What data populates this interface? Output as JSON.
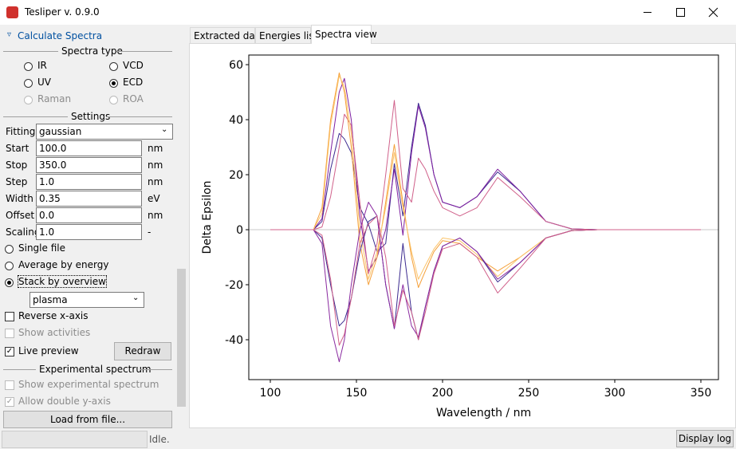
{
  "window": {
    "title": "Tesliper v. 0.9.0"
  },
  "panel": {
    "section": "Calculate Spectra",
    "spectra_type": {
      "header": "Spectra type",
      "options": [
        "IR",
        "VCD",
        "UV",
        "ECD",
        "Raman",
        "ROA"
      ]
    },
    "settings": {
      "header": "Settings",
      "fitting_label": "Fitting",
      "fitting": "gaussian",
      "rows": [
        {
          "label": "Start",
          "value": "100.0",
          "unit": "nm"
        },
        {
          "label": "Stop",
          "value": "350.0",
          "unit": "nm"
        },
        {
          "label": "Step",
          "value": "1.0",
          "unit": "nm"
        },
        {
          "label": "Width",
          "value": "0.35",
          "unit": "eV"
        },
        {
          "label": "Offset",
          "value": "0.0",
          "unit": "nm"
        },
        {
          "label": "Scaling",
          "value": "1.0",
          "unit": "-"
        }
      ]
    },
    "modes": [
      "Single file",
      "Average by energy",
      "Stack by overview"
    ],
    "colormap": "plasma",
    "reverse_x": "Reverse x-axis",
    "show_activities": "Show activities",
    "live_preview": "Live preview",
    "redraw": "Redraw",
    "experimental": {
      "header": "Experimental spectrum",
      "show": "Show experimental spectrum",
      "double_y": "Allow double y-axis",
      "load": "Load from file..."
    }
  },
  "tabs": [
    "Extracted data",
    "Energies list",
    "Spectra view"
  ],
  "status": {
    "text": "Idle.",
    "log_button": "Display log"
  },
  "chart_data": {
    "type": "line",
    "xlabel": "Wavelength / nm",
    "ylabel": "Delta Epsilon",
    "x": [
      100,
      125,
      130,
      135,
      140,
      143,
      147,
      152,
      157,
      162,
      167,
      172,
      177,
      182,
      186,
      190,
      195,
      200,
      210,
      220,
      232,
      245,
      260,
      275,
      290,
      350
    ],
    "series": [
      {
        "color": "#3b2a8f",
        "values": [
          0,
          0,
          3,
          22,
          35,
          33,
          28,
          8,
          2,
          -8,
          -5,
          24,
          5,
          30,
          46,
          38,
          20,
          10,
          8,
          12,
          21,
          14,
          3,
          0.3,
          0,
          0
        ]
      },
      {
        "color": "#7e1fa0",
        "values": [
          0,
          0,
          4,
          28,
          50,
          55,
          40,
          5,
          -15,
          -10,
          0,
          22,
          -2,
          28,
          45,
          37,
          20,
          10,
          8,
          12,
          22,
          14,
          3,
          0.3,
          0,
          0
        ]
      },
      {
        "color": "#d0608a",
        "values": [
          0,
          0,
          1,
          12,
          30,
          42,
          38,
          10,
          -16,
          -5,
          20,
          47,
          15,
          10,
          26,
          22,
          14,
          8,
          5,
          8,
          19,
          12,
          3,
          0.3,
          0,
          0
        ]
      },
      {
        "color": "#f5a03a",
        "values": [
          0,
          0,
          8,
          40,
          57,
          50,
          30,
          -5,
          -20,
          -10,
          10,
          31,
          10,
          -10,
          -21,
          -15,
          -8,
          -4,
          -5,
          -10,
          -15,
          -10,
          -3,
          -0.3,
          0,
          0
        ]
      },
      {
        "color": "#fbc46a",
        "values": [
          0,
          0,
          6,
          38,
          56,
          52,
          35,
          0,
          -18,
          -8,
          8,
          28,
          8,
          -8,
          -18,
          -13,
          -7,
          -3,
          -4,
          -9,
          -17,
          -10,
          -3,
          -0.3,
          0,
          0
        ]
      },
      {
        "color": "#3b2a8f",
        "values": [
          0,
          0,
          -3,
          -20,
          -35,
          -33,
          -25,
          -8,
          3,
          5,
          -20,
          -36,
          -5,
          -30,
          -40,
          -28,
          -15,
          -6,
          -3,
          -8,
          -19,
          -12,
          -3,
          -0.3,
          0,
          0
        ]
      },
      {
        "color": "#8a2aa0",
        "values": [
          0,
          0,
          -5,
          -35,
          -48,
          -40,
          -20,
          0,
          10,
          5,
          -20,
          -36,
          -20,
          -35,
          -39,
          -28,
          -15,
          -6,
          -3,
          -8,
          -18,
          -12,
          -3,
          -0.3,
          0,
          0
        ]
      },
      {
        "color": "#d0608a",
        "values": [
          0,
          0,
          -2,
          -18,
          -42,
          -38,
          -25,
          -5,
          2,
          5,
          -10,
          -35,
          -22,
          -30,
          -40,
          -30,
          -16,
          -7,
          -5,
          -10,
          -23,
          -14,
          -3,
          -0.3,
          0,
          0
        ]
      }
    ],
    "xlim": [
      87.5,
      360.2
    ],
    "ylim": [
      -54.5,
      63.5
    ],
    "xticks": [
      100,
      150,
      200,
      250,
      300,
      350
    ],
    "yticks": [
      -40,
      -20,
      0,
      20,
      40,
      60
    ],
    "zero_line": true
  }
}
